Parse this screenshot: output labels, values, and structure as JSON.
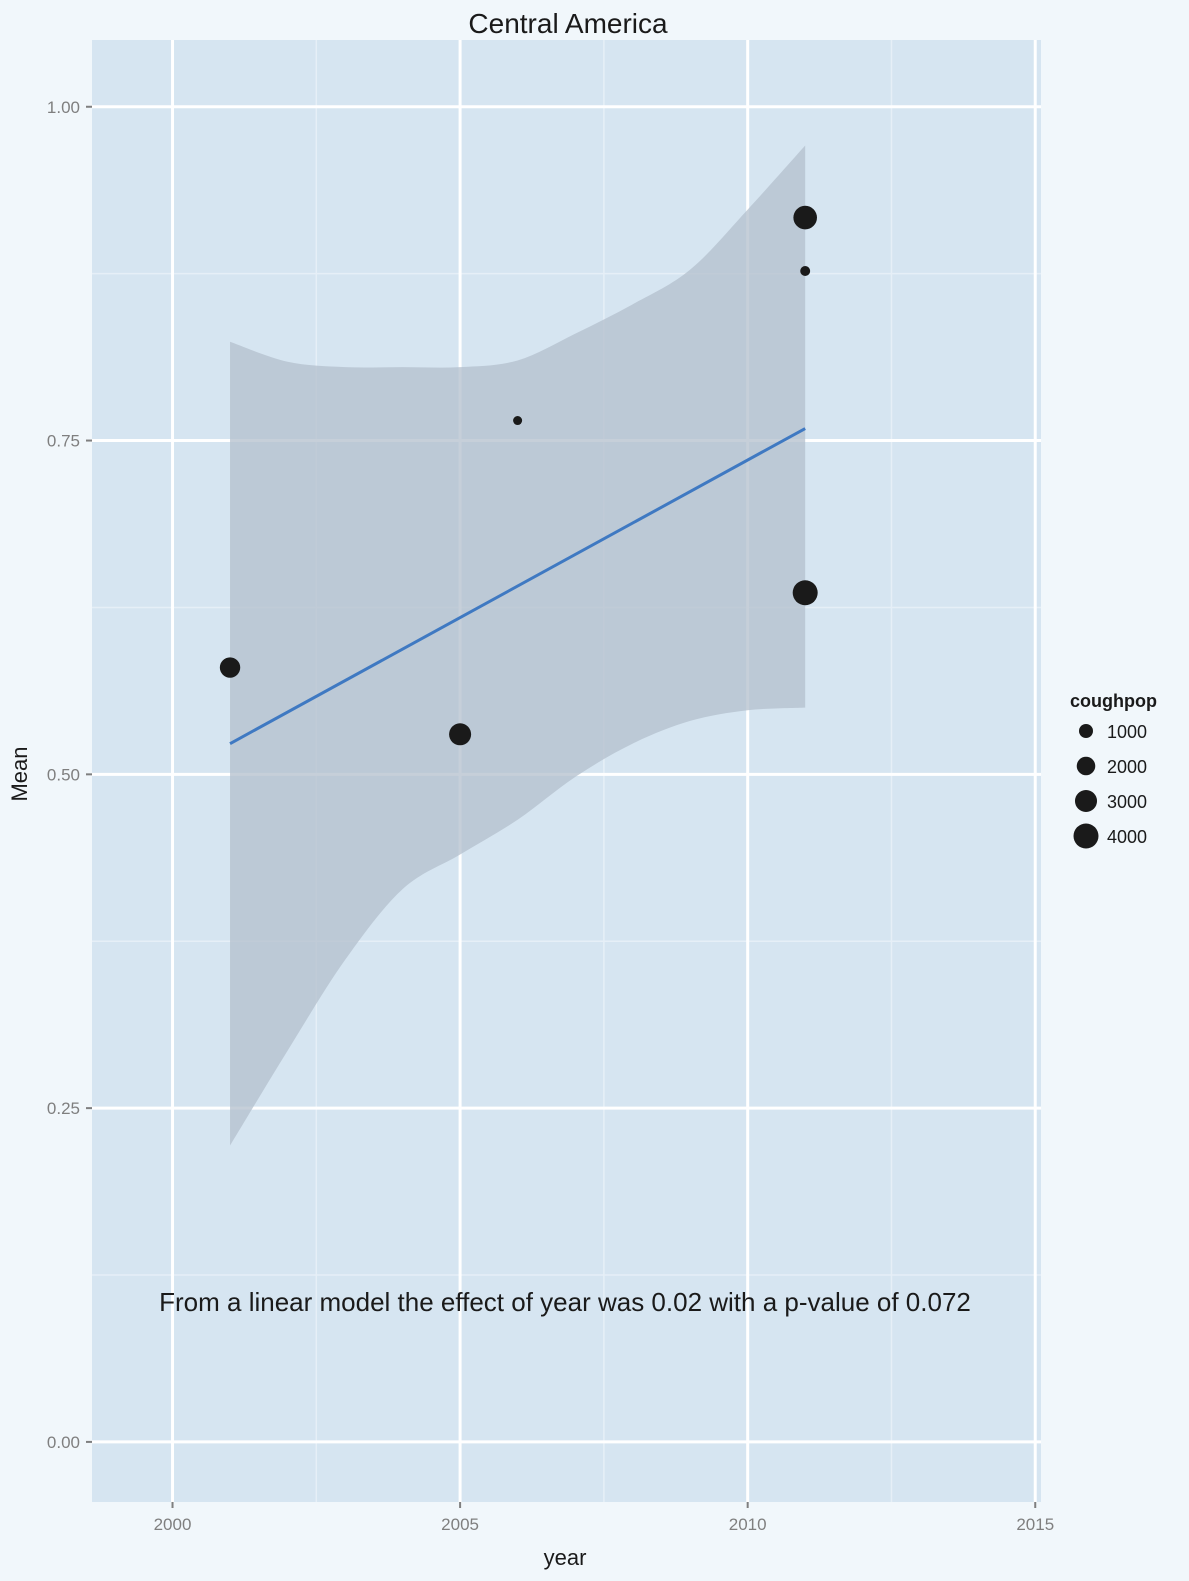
{
  "chart_data": {
    "type": "scatter",
    "title": "Central America",
    "xlabel": "year",
    "ylabel": "Mean",
    "xlim": [
      1998.6,
      2015.1
    ],
    "ylim": [
      -0.045,
      1.05
    ],
    "x_ticks": [
      2000,
      2005,
      2010,
      2015
    ],
    "x_tick_labels": [
      "2000",
      "2005",
      "2010",
      "2015"
    ],
    "y_ticks": [
      0,
      0.25,
      0.5,
      0.75,
      1
    ],
    "y_tick_labels": [
      "0.00",
      "0.25",
      "0.50",
      "0.75",
      "1.00"
    ],
    "grid": true,
    "points": [
      {
        "x": 2001,
        "y": 0.58,
        "coughpop": 2500
      },
      {
        "x": 2005,
        "y": 0.53,
        "coughpop": 3000
      },
      {
        "x": 2006,
        "y": 0.765,
        "coughpop": 300
      },
      {
        "x": 2011,
        "y": 0.917,
        "coughpop": 3500
      },
      {
        "x": 2011,
        "y": 0.877,
        "coughpop": 400
      },
      {
        "x": 2011,
        "y": 0.636,
        "coughpop": 4000
      }
    ],
    "trend_line": {
      "x": [
        2001,
        2011
      ],
      "y": [
        0.523,
        0.759
      ]
    },
    "confidence_band": {
      "x": [
        2001,
        2002,
        2003,
        2004,
        2005,
        2006,
        2007,
        2008,
        2009,
        2010,
        2011
      ],
      "lower": [
        0.222,
        0.293,
        0.361,
        0.414,
        0.44,
        0.466,
        0.498,
        0.523,
        0.54,
        0.548,
        0.55
      ],
      "upper": [
        0.824,
        0.809,
        0.805,
        0.805,
        0.805,
        0.81,
        0.83,
        0.852,
        0.878,
        0.923,
        0.971
      ]
    },
    "legend": {
      "title": "coughpop",
      "position": "right",
      "entries": [
        {
          "label": "1000",
          "value": 1000
        },
        {
          "label": "2000",
          "value": 2000
        },
        {
          "label": "3000",
          "value": 3000
        },
        {
          "label": "4000",
          "value": 4000
        }
      ]
    },
    "annotation": "From a linear model the effect of year was 0.02 with a p-value of 0.072",
    "colors": {
      "page_background": "#f1f7fb",
      "panel_background": "#d6e5f1",
      "grid_major": "#ffffff",
      "grid_minor": "#e6eff7",
      "band": "#b3bfcc",
      "trend_line": "#3f79c2",
      "point": "#1a1a1a"
    }
  }
}
